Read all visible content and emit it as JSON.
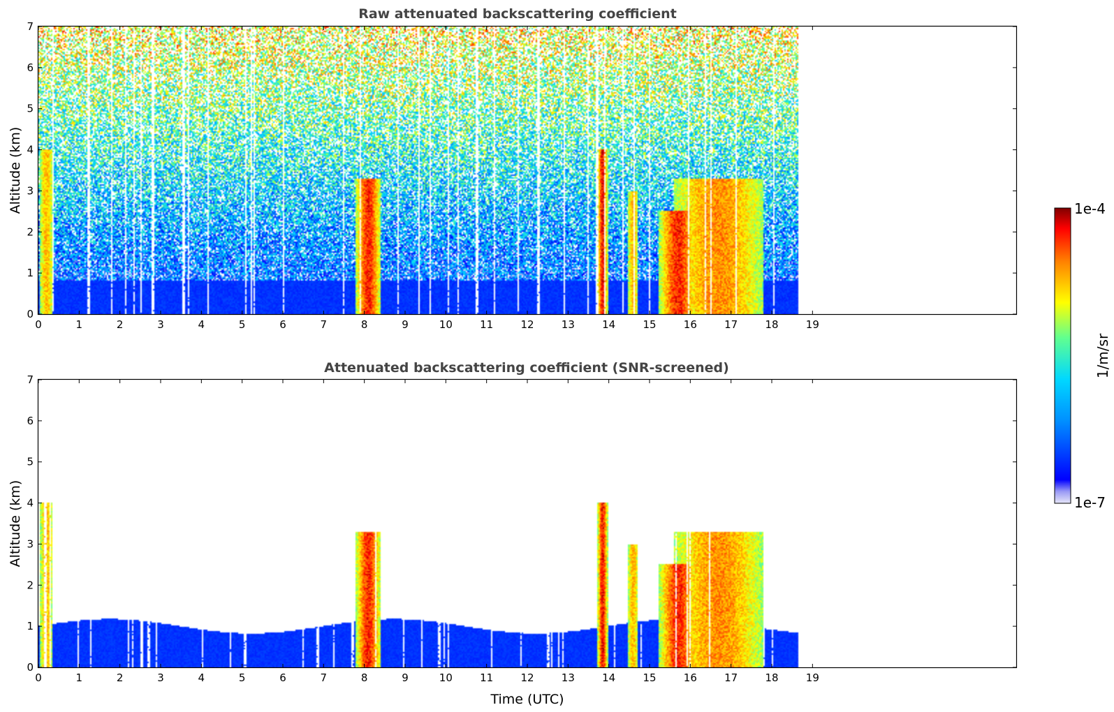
{
  "chart_data": [
    {
      "type": "heatmap",
      "title": "Raw attenuated backscattering coefficient",
      "xlabel": "",
      "ylabel": "Altitude (km)",
      "xlim": [
        0,
        24
      ],
      "ylim": [
        0,
        7
      ],
      "xticks": [
        "0",
        "1",
        "2",
        "3",
        "4",
        "5",
        "6",
        "7",
        "8",
        "9",
        "10",
        "11",
        "12",
        "13",
        "14",
        "15",
        "16",
        "17",
        "18",
        "19"
      ],
      "yticks": [
        "0",
        "1",
        "2",
        "3",
        "4",
        "5",
        "6",
        "7"
      ],
      "data_end_time": 18.65,
      "features": [
        {
          "name": "near-surface layer",
          "time": [
            0,
            18.65
          ],
          "altitude": [
            0,
            0.8
          ],
          "level": "low"
        },
        {
          "name": "cloud",
          "time": [
            7.65,
            8.55
          ],
          "altitude": [
            0,
            3.3
          ],
          "level": "high"
        },
        {
          "name": "cloud",
          "time": [
            13.7,
            14.0
          ],
          "altitude": [
            0,
            4.0
          ],
          "level": "high"
        },
        {
          "name": "cloud",
          "time": [
            15.2,
            16.2
          ],
          "altitude": [
            0,
            2.5
          ],
          "level": "high"
        },
        {
          "name": "cloud",
          "time": [
            14.4,
            18.65
          ],
          "altitude": [
            0,
            3.3
          ],
          "level": "medium"
        },
        {
          "name": "cloud",
          "time": [
            0,
            0.45
          ],
          "altitude": [
            0,
            4.0
          ],
          "level": "medium"
        }
      ]
    },
    {
      "type": "heatmap",
      "title": "Attenuated backscattering coefficient (SNR-screened)",
      "xlabel": "Time (UTC)",
      "ylabel": "Altitude (km)",
      "xlim": [
        0,
        24
      ],
      "ylim": [
        0,
        7
      ],
      "xticks": [
        "0",
        "1",
        "2",
        "3",
        "4",
        "5",
        "6",
        "7",
        "8",
        "9",
        "10",
        "11",
        "12",
        "13",
        "14",
        "15",
        "16",
        "17",
        "18",
        "19"
      ],
      "yticks": [
        "0",
        "1",
        "2",
        "3",
        "4",
        "5",
        "6",
        "7"
      ],
      "data_end_time": 18.65,
      "features": [
        {
          "name": "boundary layer",
          "time": [
            0,
            18.65
          ],
          "altitude": [
            0,
            1.1
          ],
          "level": "low"
        },
        {
          "name": "cloud",
          "time": [
            7.65,
            8.55
          ],
          "altitude": [
            0,
            3.3
          ],
          "level": "high"
        },
        {
          "name": "cloud",
          "time": [
            13.7,
            14.0
          ],
          "altitude": [
            0,
            4.0
          ],
          "level": "high"
        },
        {
          "name": "cloud",
          "time": [
            15.2,
            16.2
          ],
          "altitude": [
            0,
            2.5
          ],
          "level": "high"
        },
        {
          "name": "cloud",
          "time": [
            14.4,
            18.65
          ],
          "altitude": [
            0,
            3.5
          ],
          "level": "medium"
        },
        {
          "name": "cloud",
          "time": [
            0,
            0.45
          ],
          "altitude": [
            0,
            4.0
          ],
          "level": "medium"
        }
      ]
    }
  ],
  "colorbar": {
    "label": "1/m/sr",
    "min_label": "1e-7",
    "max_label": "1e-4",
    "scale": "log",
    "colormap": "jet",
    "colors": [
      "#e6e6f8",
      "#0000ff",
      "#0080ff",
      "#00d8ff",
      "#60ff90",
      "#ffff00",
      "#ff8000",
      "#ff0000",
      "#800000"
    ]
  }
}
